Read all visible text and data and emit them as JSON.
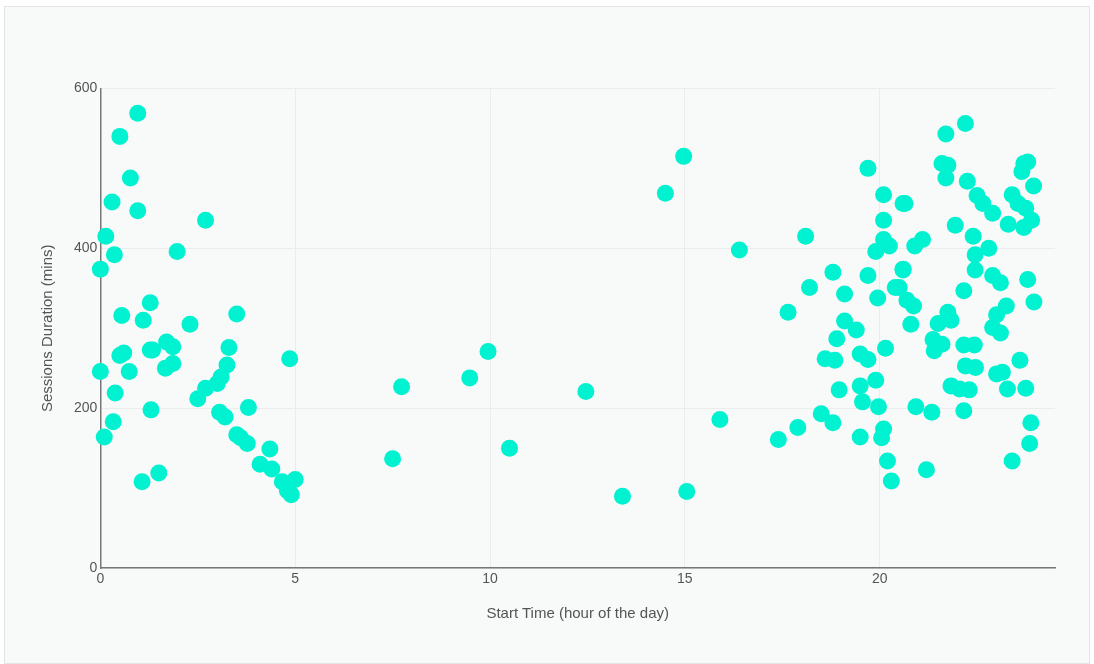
{
  "chart_data": {
    "type": "scatter",
    "xlabel": "Start Time (hour of the day)",
    "ylabel": "Sessions Duration (mins)",
    "xlim": [
      0,
      24.5
    ],
    "xticks": [
      0,
      5,
      10,
      15,
      20
    ],
    "ylim": [
      0,
      600
    ],
    "yticks": [
      0,
      200,
      400,
      600
    ],
    "grid": true,
    "legend": false,
    "marker": "circle",
    "series": [
      {
        "color": "#00f2d0",
        "x": [
          0,
          0.1,
          0.14,
          0,
          0.3,
          0.33,
          0.36,
          0.38,
          0.5,
          0.5,
          0.55,
          0.6,
          0.74,
          0.77,
          0.96,
          0.96,
          1.07,
          1.1,
          1.28,
          1.28,
          1.3,
          1.34,
          1.5,
          1.67,
          1.7,
          1.86,
          1.86,
          1.97,
          2.3,
          2.5,
          2.7,
          2.7,
          3.0,
          3.06,
          3.1,
          3.2,
          3.25,
          3.3,
          3.5,
          3.5,
          3.6,
          3.8,
          3.77,
          4.1,
          4.35,
          4.4,
          4.67,
          4.8,
          4.9,
          5.0,
          4.86,
          7.5,
          7.73,
          9.48,
          9.95,
          10.5,
          12.46,
          13.4,
          14.5,
          14.97,
          15.05,
          15.9,
          16.4,
          19.7,
          20.1,
          20.6,
          20.1,
          18.1,
          20.1,
          20.25,
          19.9,
          20.6,
          18.8,
          19.7,
          20.4,
          18.2,
          19.1,
          19.95,
          17.65,
          19.1,
          19.4,
          18.9,
          20.15,
          18.6,
          18.85,
          19.5,
          19.7,
          18.96,
          19.9,
          19.5,
          19.56,
          19.97,
          18.5,
          18.8,
          17.9,
          17.4,
          19.5,
          20.1,
          20.05,
          20.2,
          20.3,
          22.2,
          21.7,
          21.6,
          21.75,
          21.7,
          22.25,
          22.5,
          22.65,
          22.9,
          23.4,
          23.7,
          23.8,
          23.65,
          23.95,
          23.55,
          23.75,
          23.3,
          23.7,
          23.9,
          20.65,
          21.94,
          22.4,
          22.8,
          22.45,
          22.45,
          21.1,
          20.9,
          20.6,
          22.9,
          23.1,
          23.8,
          23.96,
          22.16,
          20.5,
          20.7,
          20.87,
          20.8,
          21.75,
          21.83,
          21.5,
          23.25,
          23.0,
          22.9,
          23.1,
          21.37,
          21.6,
          21.4,
          22.16,
          22.43,
          22.2,
          22.46,
          23.6,
          23.0,
          23.15,
          23.28,
          23.75,
          21.83,
          22.05,
          22.3,
          22.16,
          20.93,
          21.34,
          23.88,
          23.85,
          23.4,
          21.2
        ],
        "values": [
          246,
          164,
          415,
          374,
          458,
          183,
          392,
          219,
          266,
          540,
          316,
          269,
          246,
          488,
          447,
          569,
          108,
          310,
          273,
          332,
          198,
          273,
          119,
          250,
          283,
          277,
          256,
          396,
          305,
          212,
          225,
          435,
          231,
          195,
          239,
          189,
          254,
          276,
          318,
          167,
          163,
          201,
          156,
          130,
          149,
          124,
          108,
          97,
          92,
          111,
          262,
          137,
          227,
          238,
          271,
          150,
          221,
          90,
          469,
          515,
          96,
          186,
          398,
          500,
          467,
          456,
          435,
          415,
          411,
          403,
          396,
          374,
          370,
          366,
          351,
          351,
          343,
          338,
          320,
          309,
          298,
          287,
          275,
          262,
          260,
          268,
          261,
          223,
          235,
          228,
          208,
          202,
          193,
          182,
          176,
          161,
          164,
          174,
          163,
          134,
          109,
          556,
          543,
          506,
          504,
          488,
          484,
          466,
          456,
          444,
          467,
          506,
          508,
          496,
          478,
          456,
          450,
          430,
          426,
          435,
          456,
          429,
          415,
          400,
          392,
          373,
          411,
          403,
          373,
          366,
          357,
          361,
          333,
          347,
          351,
          335,
          328,
          305,
          320,
          310,
          306,
          328,
          317,
          301,
          294,
          286,
          280,
          272,
          279,
          279,
          253,
          251,
          260,
          243,
          245,
          224,
          225,
          228,
          224,
          223,
          197,
          202,
          195,
          182,
          156,
          134,
          123
        ]
      }
    ]
  }
}
